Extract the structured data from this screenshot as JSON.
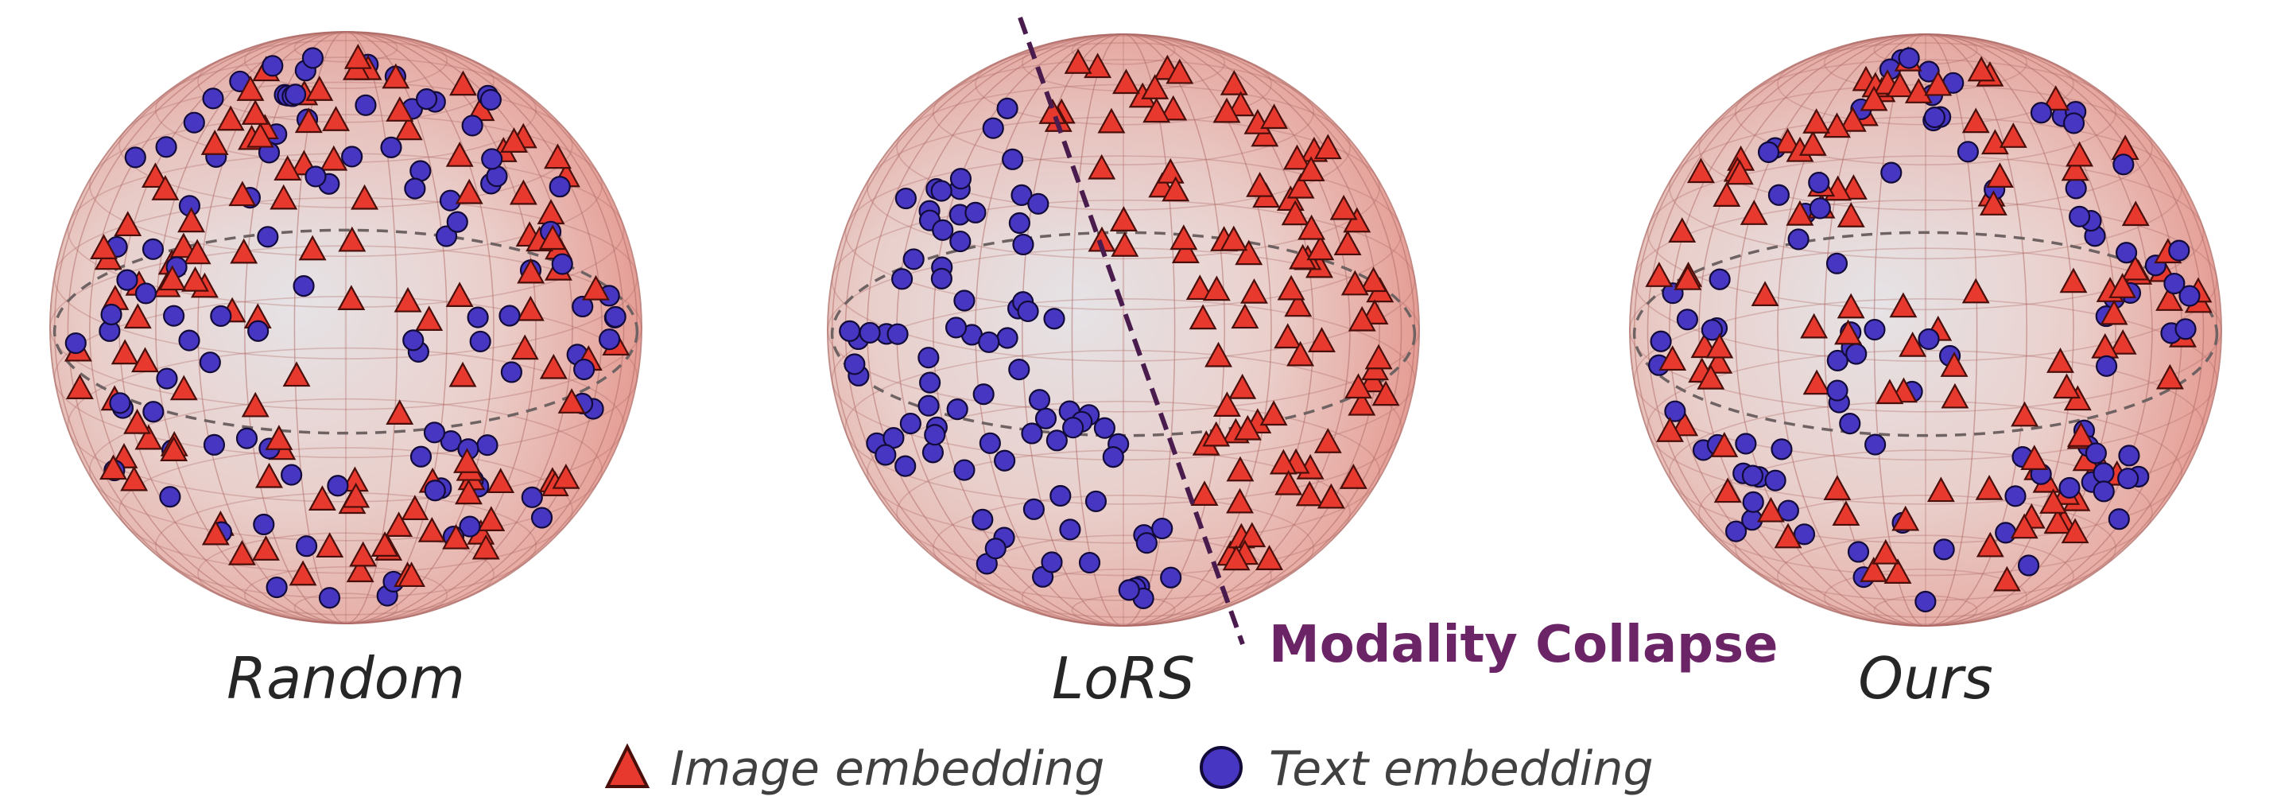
{
  "panels": [
    {
      "label": "Random",
      "distribution": "uniform",
      "triangles": 125,
      "circles": 105,
      "seed": 7
    },
    {
      "label": "LoRS",
      "distribution": "collapsed",
      "triangles": 95,
      "circles": 85,
      "seed": 11
    },
    {
      "label": "Ours",
      "distribution": "clustered",
      "triangles": 115,
      "circles": 95,
      "seed": 23
    }
  ],
  "annotation": {
    "text": "Modality Collapse",
    "color": "#6b2466"
  },
  "legend": {
    "image_label": "Image embedding",
    "text_label": "Text embedding"
  },
  "colors": {
    "triangle_fill": "#e8392e",
    "triangle_stroke": "#4a0f0b",
    "circle_fill": "#4636c2",
    "circle_stroke": "#120b3a",
    "sphere_light": "#e4e0e4",
    "sphere_warm": "#e8a29a",
    "grid": "#b06a66",
    "equator": "#6f6262",
    "separator": "#4a1c4e"
  }
}
